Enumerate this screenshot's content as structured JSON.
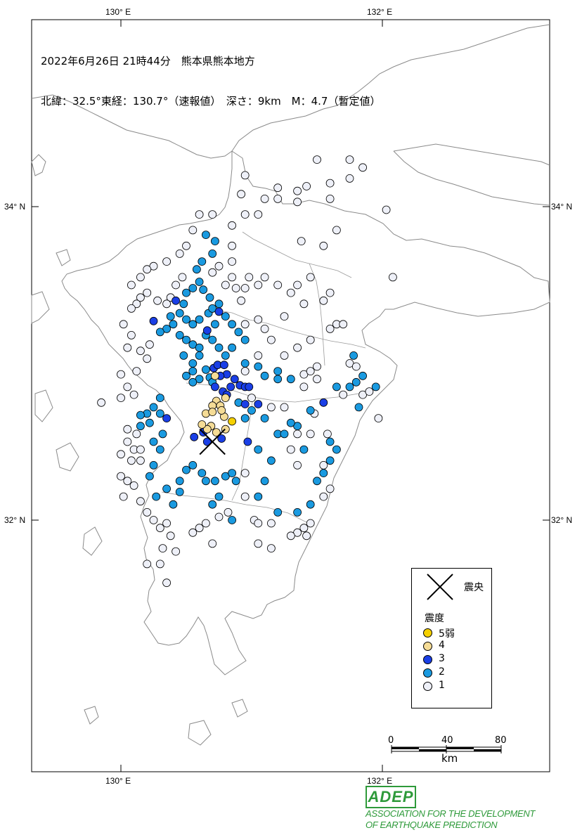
{
  "header": {
    "line1": "2022年6月26日 21時44分　熊本県熊本地方",
    "line2": "北緯：32.5°東経：130.7°（速報値）　深さ：9km　M：4.7（暫定値）"
  },
  "axes": {
    "lon_top": [
      "130° E",
      "132° E"
    ],
    "lon_bottom": [
      "130° E",
      "132° E"
    ],
    "lat_left": [
      "34° N",
      "32° N"
    ],
    "lat_right": [
      "34° N",
      "32° N"
    ]
  },
  "legend": {
    "epicenter_label": "震央",
    "title": "震度",
    "items": [
      {
        "label": "5弱",
        "color": "#f5d000"
      },
      {
        "label": "4",
        "color": "#f5dc96"
      },
      {
        "label": "3",
        "color": "#1a3fe6"
      },
      {
        "label": "2",
        "color": "#1a9ae0"
      },
      {
        "label": "1",
        "color": "#eef0f8"
      }
    ]
  },
  "scale_bar": {
    "ticks": [
      "0",
      "40",
      "80"
    ],
    "unit": "km"
  },
  "logo": {
    "mark": "ADEP",
    "line1": "ASSOCIATION FOR THE DEVELOPMENT",
    "line2": "OF EARTHQUAKE PREDICTION"
  },
  "epicenter": {
    "lat": 32.5,
    "lon": 130.7
  },
  "stations": {
    "int5lower": [
      [
        130.85,
        32.63
      ]
    ],
    "int4": [
      [
        130.72,
        32.92
      ],
      [
        130.73,
        32.76
      ],
      [
        130.8,
        32.78
      ],
      [
        130.7,
        32.73
      ],
      [
        130.76,
        32.73
      ],
      [
        130.65,
        32.68
      ],
      [
        130.7,
        32.69
      ],
      [
        130.79,
        32.66
      ],
      [
        130.77,
        32.7
      ],
      [
        130.73,
        32.56
      ],
      [
        130.69,
        32.6
      ],
      [
        130.66,
        32.58
      ],
      [
        130.62,
        32.61
      ],
      [
        130.8,
        32.58
      ]
    ],
    "int3": [
      [
        130.71,
        32.97
      ],
      [
        130.74,
        32.99
      ],
      [
        130.79,
        32.99
      ],
      [
        130.81,
        32.93
      ],
      [
        130.76,
        32.92
      ],
      [
        130.87,
        32.9
      ],
      [
        130.91,
        32.86
      ],
      [
        130.95,
        32.85
      ],
      [
        130.98,
        32.85
      ],
      [
        130.72,
        32.85
      ],
      [
        130.78,
        32.82
      ],
      [
        130.84,
        32.85
      ],
      [
        130.81,
        32.8
      ],
      [
        130.66,
        33.21
      ],
      [
        130.42,
        33.4
      ],
      [
        131.05,
        32.74
      ],
      [
        130.95,
        32.74
      ],
      [
        130.63,
        32.56
      ],
      [
        130.56,
        32.53
      ],
      [
        130.35,
        32.65
      ],
      [
        130.25,
        33.27
      ],
      [
        130.75,
        33.33
      ],
      [
        131.55,
        32.75
      ],
      [
        130.77,
        32.52
      ],
      [
        130.66,
        32.5
      ],
      [
        130.97,
        32.5
      ]
    ],
    "int2": [
      [
        130.6,
        33.28
      ],
      [
        130.67,
        33.32
      ],
      [
        130.7,
        33.35
      ],
      [
        130.75,
        33.38
      ],
      [
        130.68,
        33.42
      ],
      [
        130.63,
        33.47
      ],
      [
        130.6,
        33.52
      ],
      [
        130.58,
        33.6
      ],
      [
        130.62,
        33.65
      ],
      [
        130.7,
        33.7
      ],
      [
        130.72,
        33.78
      ],
      [
        130.65,
        33.82
      ],
      [
        130.55,
        33.48
      ],
      [
        130.5,
        33.45
      ],
      [
        130.48,
        33.38
      ],
      [
        130.45,
        33.32
      ],
      [
        130.5,
        33.28
      ],
      [
        130.55,
        33.25
      ],
      [
        130.38,
        33.3
      ],
      [
        130.4,
        33.25
      ],
      [
        130.35,
        33.22
      ],
      [
        130.3,
        33.2
      ],
      [
        130.45,
        33.18
      ],
      [
        130.5,
        33.15
      ],
      [
        130.55,
        33.12
      ],
      [
        130.6,
        33.1
      ],
      [
        130.65,
        33.18
      ],
      [
        130.7,
        33.15
      ],
      [
        130.75,
        33.1
      ],
      [
        130.8,
        33.05
      ],
      [
        130.72,
        33.25
      ],
      [
        130.8,
        33.3
      ],
      [
        130.85,
        33.25
      ],
      [
        130.9,
        33.2
      ],
      [
        130.95,
        33.15
      ],
      [
        130.85,
        33.1
      ],
      [
        130.95,
        33.0
      ],
      [
        131.05,
        32.98
      ],
      [
        131.1,
        32.92
      ],
      [
        131.2,
        32.95
      ],
      [
        131.2,
        32.9
      ],
      [
        131.3,
        32.9
      ],
      [
        130.5,
        32.92
      ],
      [
        130.55,
        32.95
      ],
      [
        130.48,
        33.05
      ],
      [
        130.55,
        33.0
      ],
      [
        130.6,
        33.05
      ],
      [
        130.65,
        32.96
      ],
      [
        130.68,
        32.91
      ],
      [
        130.6,
        32.9
      ],
      [
        130.55,
        32.88
      ],
      [
        130.7,
        32.88
      ],
      [
        130.9,
        32.75
      ],
      [
        131.0,
        32.7
      ],
      [
        131.1,
        32.65
      ],
      [
        131.2,
        32.55
      ],
      [
        130.3,
        32.78
      ],
      [
        130.25,
        32.72
      ],
      [
        130.2,
        32.68
      ],
      [
        130.3,
        32.68
      ],
      [
        130.15,
        32.67
      ],
      [
        130.22,
        32.62
      ],
      [
        130.15,
        32.6
      ],
      [
        130.3,
        32.45
      ],
      [
        130.25,
        32.35
      ],
      [
        130.22,
        32.28
      ],
      [
        130.35,
        32.2
      ],
      [
        130.45,
        32.25
      ],
      [
        130.5,
        32.32
      ],
      [
        130.55,
        32.35
      ],
      [
        130.62,
        32.3
      ],
      [
        130.65,
        32.25
      ],
      [
        130.72,
        32.25
      ],
      [
        130.8,
        32.28
      ],
      [
        130.85,
        32.3
      ],
      [
        130.75,
        32.15
      ],
      [
        130.7,
        32.1
      ],
      [
        130.45,
        32.18
      ],
      [
        130.4,
        32.1
      ],
      [
        130.85,
        32.0
      ],
      [
        130.25,
        32.5
      ],
      [
        130.32,
        32.55
      ],
      [
        130.27,
        32.15
      ],
      [
        131.75,
        32.85
      ],
      [
        131.8,
        32.88
      ],
      [
        131.85,
        32.92
      ],
      [
        131.78,
        33.05
      ],
      [
        131.65,
        32.85
      ],
      [
        131.45,
        32.7
      ],
      [
        131.35,
        32.6
      ],
      [
        131.6,
        32.5
      ],
      [
        131.4,
        32.45
      ],
      [
        131.6,
        32.38
      ],
      [
        131.55,
        32.3
      ],
      [
        131.5,
        32.25
      ],
      [
        131.45,
        32.1
      ],
      [
        131.35,
        32.05
      ],
      [
        131.2,
        32.05
      ],
      [
        131.1,
        32.25
      ],
      [
        131.05,
        32.15
      ],
      [
        131.15,
        32.38
      ],
      [
        131.05,
        32.45
      ],
      [
        131.25,
        32.55
      ],
      [
        131.3,
        32.62
      ],
      [
        130.95,
        32.65
      ],
      [
        131.95,
        32.85
      ],
      [
        131.82,
        32.72
      ],
      [
        131.65,
        32.45
      ],
      [
        130.88,
        32.25
      ]
    ],
    "int1": [
      [
        130.47,
        33.55
      ],
      [
        130.42,
        33.5
      ],
      [
        130.38,
        33.42
      ],
      [
        130.35,
        33.38
      ],
      [
        130.28,
        33.4
      ],
      [
        130.2,
        33.45
      ],
      [
        130.15,
        33.42
      ],
      [
        130.12,
        33.38
      ],
      [
        130.08,
        33.35
      ],
      [
        130.02,
        33.25
      ],
      [
        130.08,
        33.18
      ],
      [
        130.05,
        33.1
      ],
      [
        130.15,
        33.08
      ],
      [
        130.22,
        33.12
      ],
      [
        130.2,
        33.03
      ],
      [
        130.12,
        32.95
      ],
      [
        130.0,
        32.93
      ],
      [
        130.05,
        32.85
      ],
      [
        130.1,
        32.8
      ],
      [
        130.0,
        32.78
      ],
      [
        129.85,
        32.75
      ],
      [
        130.05,
        32.58
      ],
      [
        130.12,
        32.55
      ],
      [
        130.05,
        32.5
      ],
      [
        130.1,
        32.45
      ],
      [
        130.15,
        32.45
      ],
      [
        130.0,
        32.42
      ],
      [
        130.08,
        32.38
      ],
      [
        130.15,
        32.38
      ],
      [
        130.0,
        32.28
      ],
      [
        130.05,
        32.25
      ],
      [
        130.1,
        32.22
      ],
      [
        130.02,
        32.15
      ],
      [
        130.15,
        32.12
      ],
      [
        130.2,
        32.05
      ],
      [
        130.25,
        32.0
      ],
      [
        130.3,
        31.95
      ],
      [
        130.35,
        31.98
      ],
      [
        130.38,
        31.9
      ],
      [
        130.32,
        31.82
      ],
      [
        130.42,
        31.8
      ],
      [
        130.3,
        31.72
      ],
      [
        130.2,
        31.72
      ],
      [
        130.35,
        31.6
      ],
      [
        130.55,
        31.92
      ],
      [
        130.6,
        31.95
      ],
      [
        130.65,
        31.98
      ],
      [
        130.7,
        31.85
      ],
      [
        130.75,
        32.02
      ],
      [
        130.82,
        32.05
      ],
      [
        131.02,
        32.0
      ],
      [
        131.05,
        31.98
      ],
      [
        131.15,
        31.98
      ],
      [
        131.35,
        31.92
      ],
      [
        131.4,
        31.95
      ],
      [
        131.42,
        31.9
      ],
      [
        131.45,
        31.98
      ],
      [
        131.05,
        31.85
      ],
      [
        131.15,
        31.82
      ],
      [
        131.3,
        31.9
      ],
      [
        131.55,
        32.15
      ],
      [
        131.6,
        32.2
      ],
      [
        131.55,
        32.35
      ],
      [
        131.35,
        32.35
      ],
      [
        130.95,
        32.15
      ],
      [
        130.95,
        32.3
      ],
      [
        131.3,
        32.45
      ],
      [
        131.35,
        32.55
      ],
      [
        131.45,
        32.55
      ],
      [
        131.58,
        32.55
      ],
      [
        131.48,
        32.68
      ],
      [
        131.25,
        32.72
      ],
      [
        131.15,
        32.72
      ],
      [
        131.0,
        32.78
      ],
      [
        130.95,
        32.95
      ],
      [
        131.05,
        33.05
      ],
      [
        131.25,
        33.05
      ],
      [
        131.35,
        33.1
      ],
      [
        131.45,
        33.15
      ],
      [
        131.6,
        33.22
      ],
      [
        131.65,
        33.25
      ],
      [
        131.7,
        33.25
      ],
      [
        131.4,
        32.93
      ],
      [
        131.45,
        32.95
      ],
      [
        131.5,
        32.98
      ],
      [
        131.5,
        32.9
      ],
      [
        131.4,
        32.85
      ],
      [
        131.7,
        32.8
      ],
      [
        131.85,
        32.8
      ],
      [
        131.9,
        32.82
      ],
      [
        131.75,
        33.0
      ],
      [
        131.8,
        32.98
      ],
      [
        131.3,
        33.45
      ],
      [
        131.35,
        33.5
      ],
      [
        131.45,
        33.55
      ],
      [
        131.6,
        33.45
      ],
      [
        131.55,
        33.4
      ],
      [
        131.4,
        33.38
      ],
      [
        131.2,
        33.5
      ],
      [
        131.1,
        33.55
      ],
      [
        131.05,
        33.5
      ],
      [
        130.95,
        33.48
      ],
      [
        130.98,
        33.55
      ],
      [
        130.85,
        33.75
      ],
      [
        130.85,
        33.88
      ],
      [
        130.95,
        33.95
      ],
      [
        131.05,
        33.95
      ],
      [
        131.1,
        34.05
      ],
      [
        131.2,
        34.05
      ],
      [
        131.35,
        34.03
      ],
      [
        131.35,
        34.1
      ],
      [
        131.42,
        34.13
      ],
      [
        131.6,
        34.15
      ],
      [
        131.75,
        34.3
      ],
      [
        131.5,
        34.3
      ],
      [
        131.75,
        34.18
      ],
      [
        131.6,
        34.05
      ],
      [
        131.85,
        34.25
      ],
      [
        131.2,
        34.12
      ],
      [
        130.95,
        34.2
      ],
      [
        130.92,
        34.08
      ],
      [
        131.38,
        33.78
      ],
      [
        131.65,
        33.85
      ],
      [
        131.55,
        33.75
      ],
      [
        132.03,
        33.98
      ],
      [
        132.08,
        33.55
      ],
      [
        131.97,
        32.65
      ],
      [
        130.7,
        33.95
      ],
      [
        130.6,
        33.95
      ],
      [
        130.55,
        33.85
      ],
      [
        130.5,
        33.75
      ],
      [
        130.45,
        33.7
      ],
      [
        130.35,
        33.65
      ],
      [
        130.25,
        33.62
      ],
      [
        130.2,
        33.6
      ],
      [
        130.15,
        33.55
      ],
      [
        130.08,
        33.5
      ],
      [
        130.75,
        33.62
      ],
      [
        130.85,
        33.55
      ],
      [
        130.88,
        33.48
      ],
      [
        130.92,
        33.4
      ],
      [
        130.95,
        33.25
      ],
      [
        131.05,
        33.28
      ],
      [
        131.1,
        33.22
      ],
      [
        131.15,
        33.15
      ],
      [
        131.25,
        33.3
      ],
      [
        130.85,
        33.65
      ],
      [
        130.7,
        33.58
      ],
      [
        130.8,
        33.5
      ]
    ]
  }
}
